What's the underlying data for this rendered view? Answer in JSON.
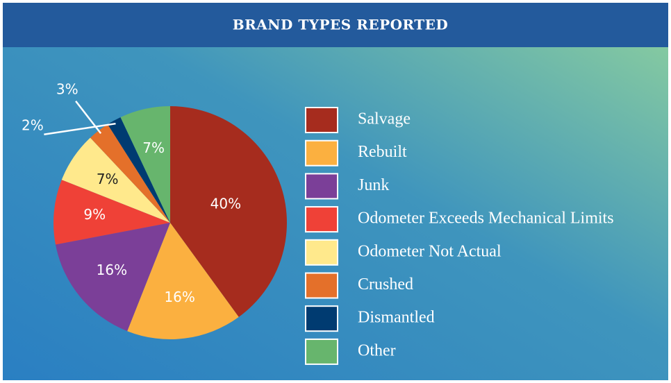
{
  "chart_data": {
    "type": "pie",
    "title": "BRAND TYPES REPORTED",
    "categories": [
      "Salvage",
      "Rebuilt",
      "Junk",
      "Odometer Exceeds Mechanical Limits",
      "Odometer Not Actual",
      "Crushed",
      "Dismantled",
      "Other"
    ],
    "values": [
      40,
      16,
      16,
      9,
      7,
      3,
      2,
      7
    ],
    "value_labels": [
      "40%",
      "16%",
      "16%",
      "9%",
      "7%",
      "3%",
      "2%",
      "7%"
    ],
    "colors": [
      "#a62c1e",
      "#fbb040",
      "#7b3f98",
      "#ef4137",
      "#ffe98c",
      "#e4702a",
      "#003b71",
      "#67b56d"
    ]
  }
}
